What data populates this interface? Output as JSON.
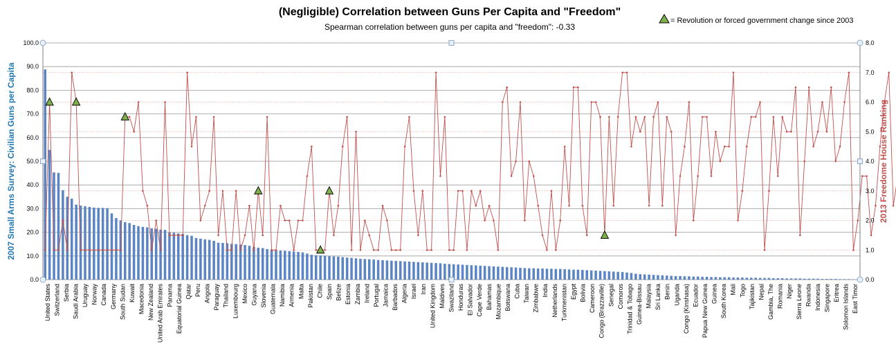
{
  "chart_data": {
    "type": "bar+line",
    "title": "(Negligible) Correlation between Guns Per Capita and \"Freedom\"",
    "subtitle": "Spearman correlation between guns per capita and \"freedom\":  -0.33",
    "ylabel_left": "2007 Small Arms Survey: Civilian Guns per Capita",
    "ylabel_right": "2013 Freedome House Ranking",
    "legend_text": "= Revolution or forced government change since 2003",
    "legend_placement": "top-right",
    "ylim_left": [
      0,
      100
    ],
    "ylim_right": [
      0,
      8
    ],
    "yticks_left": [
      "0.0",
      "10.0",
      "20.0",
      "30.0",
      "40.0",
      "50.0",
      "60.0",
      "70.0",
      "80.0",
      "90.0",
      "100.0"
    ],
    "yticks_right": [
      "0.0",
      "1.0",
      "2.0",
      "3.0",
      "4.0",
      "5.0",
      "6.0",
      "7.0",
      "8.0"
    ],
    "grid": true,
    "colors": {
      "bars": "#5b84c4",
      "line": "#c0504d",
      "marker_fill": "#7fb24a",
      "left_axis_label": "#1f77b4",
      "right_axis_label": "#c0504d"
    },
    "x_tick_labels": [
      "United States",
      "Switzerland",
      "Serbia",
      "Saudi Arabia",
      "Uruguay",
      "Norway",
      "Canada",
      "Germany",
      "South Sudan",
      "Kuwait",
      "Macedonia",
      "New Zealand",
      "United Arab Emirates",
      "Panama",
      "Equatorial Guinea",
      "Qatar",
      "Peru",
      "Angola",
      "Paraguay",
      "Thailand",
      "Luxembourg",
      "Mexico",
      "Guyana",
      "Slovenia",
      "Guatemala",
      "Namibia",
      "Armenia",
      "Malta",
      "Pakistan",
      "Chile",
      "Spain",
      "Belize",
      "Estonia",
      "Zambia",
      "Ireland",
      "Portugal",
      "Jamaica",
      "Barbados",
      "Algeria",
      "Israel",
      "Iran",
      "United Kingdom",
      "Maldives",
      "Swaziland",
      "Honduras",
      "El Salvador",
      "Cape Verde",
      "Bahamas",
      "Mozambique",
      "Botswana",
      "Cuba",
      "Taiwan",
      "Zimbabwe",
      "India",
      "Netherlands",
      "Turkmenistan",
      "Egypt",
      "Bolivia",
      "Cameroon",
      "Congo (Brazzaville)",
      "Senegal",
      "Comoros",
      "Trinidad & Tobago",
      "Guinea-Bissau",
      "Malaysia",
      "Sri Lanka",
      "Benin",
      "Uganda",
      "Congo (Kinshasa)",
      "Ecuador",
      "Papua New Guinea",
      "Guinea",
      "South Korea",
      "Mali",
      "Togo",
      "Tajikistan",
      "Nepal",
      "Gambia, The",
      "Romania",
      "Niger",
      "Sierra Leone",
      "Rwanda",
      "Indonesia",
      "Singapore",
      "Eritrea",
      "Solomon Islands",
      "East Timor"
    ],
    "guns_per_capita": [
      88.8,
      54.8,
      45.3,
      45.1,
      37.8,
      35.0,
      34.2,
      31.7,
      31.3,
      31.0,
      30.7,
      30.4,
      30.3,
      30.3,
      30.2,
      28.0,
      26.0,
      25.0,
      24.3,
      23.9,
      23.1,
      22.6,
      22.3,
      22.1,
      21.7,
      21.5,
      21.1,
      21.0,
      19.9,
      19.8,
      19.5,
      19.3,
      18.8,
      18.5,
      17.6,
      17.3,
      17.0,
      16.8,
      16.4,
      15.6,
      15.5,
      15.4,
      15.1,
      15.0,
      14.8,
      14.6,
      14.3,
      13.8,
      13.5,
      13.3,
      12.9,
      12.6,
      12.4,
      12.3,
      12.2,
      12.0,
      11.9,
      11.7,
      11.5,
      11.0,
      10.5,
      10.3,
      10.2,
      10.1,
      9.9,
      9.8,
      9.7,
      9.5,
      9.3,
      9.2,
      9.0,
      8.8,
      8.7,
      8.6,
      8.5,
      8.3,
      8.2,
      8.1,
      8.0,
      7.9,
      7.8,
      7.7,
      7.6,
      7.5,
      7.4,
      7.3,
      7.2,
      7.1,
      7.0,
      6.9,
      6.7,
      6.6,
      6.5,
      6.4,
      6.3,
      6.2,
      6.1,
      6.0,
      5.9,
      5.8,
      5.7,
      5.6,
      5.5,
      5.4,
      5.3,
      5.2,
      5.1,
      5.0,
      4.9,
      4.8,
      4.8,
      4.7,
      4.7,
      4.6,
      4.6,
      4.5,
      4.5,
      4.4,
      4.3,
      4.2,
      4.2,
      4.1,
      4.0,
      3.9,
      3.8,
      3.7,
      3.6,
      3.5,
      3.4,
      3.3,
      3.2,
      3.0,
      2.8,
      2.5,
      2.3,
      2.2,
      2.1,
      2.0,
      1.9,
      1.8,
      1.7,
      1.6,
      1.5,
      1.5,
      1.4,
      1.4,
      1.3,
      1.3,
      1.2,
      1.2,
      1.1,
      1.1,
      1.0,
      1.0,
      1.0,
      0.9,
      0.9,
      0.9,
      0.8,
      0.8,
      0.8,
      0.7,
      0.7,
      0.7,
      0.6,
      0.6,
      0.6,
      0.5,
      0.5,
      0.5,
      0.5,
      0.4,
      0.4,
      0.4,
      0.4,
      0.3,
      0.3,
      0.3,
      0.3,
      0.2,
      0.2,
      0.2,
      0.1,
      0.1
    ],
    "freedom_ranking": [
      1.0,
      6.0,
      1.0,
      1.0,
      2.0,
      1.0,
      7.0,
      6.0,
      1.0,
      1.0,
      1.0,
      1.0,
      1.0,
      1.0,
      1.0,
      1.0,
      1.0,
      1.0,
      5.5,
      5.5,
      5.0,
      6.0,
      3.0,
      2.5,
      1.0,
      2.0,
      1.0,
      6.0,
      1.5,
      1.5,
      1.5,
      1.5,
      7.0,
      4.5,
      5.5,
      2.0,
      2.5,
      3.0,
      5.5,
      1.5,
      3.0,
      1.0,
      1.0,
      3.0,
      1.0,
      1.5,
      2.5,
      1.0,
      3.0,
      1.5,
      5.5,
      1.0,
      1.0,
      2.5,
      2.0,
      2.0,
      1.0,
      2.0,
      2.0,
      3.5,
      4.5,
      1.0,
      1.0,
      1.0,
      3.0,
      1.5,
      2.5,
      4.5,
      5.5,
      1.0,
      5.0,
      1.0,
      2.0,
      1.5,
      1.0,
      1.0,
      2.5,
      2.0,
      1.0,
      1.0,
      1.0,
      4.5,
      5.5,
      3.0,
      1.5,
      3.0,
      1.0,
      1.0,
      7.0,
      3.5,
      5.5,
      1.0,
      1.0,
      3.0,
      3.0,
      1.0,
      3.0,
      2.5,
      3.0,
      2.0,
      2.5,
      2.0,
      1.0,
      6.0,
      6.5,
      3.5,
      4.0,
      6.0,
      2.0,
      4.0,
      3.5,
      2.5,
      1.5,
      1.0,
      3.0,
      1.0,
      2.0,
      4.5,
      2.5,
      6.5,
      6.5,
      2.5,
      1.5,
      6.0,
      6.0,
      5.5,
      1.5,
      5.5,
      2.5,
      5.5,
      7.0,
      7.0,
      4.5,
      5.5,
      5.0,
      5.5,
      2.5,
      5.5,
      6.0,
      2.5,
      5.5,
      5.0,
      1.5,
      3.5,
      4.5,
      6.0,
      2.0,
      3.5,
      5.5,
      5.5,
      3.5,
      5.0,
      4.0,
      4.5,
      4.5,
      7.0,
      2.0,
      3.0,
      4.5,
      5.5,
      5.5,
      6.0,
      1.0,
      3.0,
      5.5,
      3.5,
      5.5,
      5.0,
      5.0,
      6.5,
      1.5,
      4.0,
      6.5,
      4.5,
      5.0,
      6.0,
      5.0,
      6.5,
      4.0,
      4.5,
      6.0,
      7.0,
      1.0,
      2.0,
      3.5,
      3.5,
      1.5,
      2.5,
      4.5,
      6.0,
      7.0,
      2.5,
      3.5,
      4.0,
      5.0,
      7.0,
      1.5,
      3.5,
      6.0,
      3.5,
      3.5
    ],
    "revolution_flags": [
      0,
      1,
      0,
      0,
      0,
      0,
      0,
      1,
      0,
      0,
      0,
      0,
      0,
      0,
      0,
      0,
      0,
      0,
      1,
      0,
      0,
      0,
      0,
      0,
      0,
      0,
      0,
      0,
      0,
      0,
      0,
      0,
      0,
      0,
      0,
      0,
      0,
      0,
      0,
      0,
      0,
      0,
      0,
      0,
      0,
      0,
      0,
      0,
      1,
      0,
      0,
      0,
      0,
      0,
      0,
      0,
      0,
      0,
      0,
      0,
      0,
      0,
      1,
      0,
      1,
      0,
      0,
      0,
      0,
      0,
      0,
      0,
      0,
      0,
      0,
      0,
      0,
      0,
      0,
      0,
      0,
      0,
      0,
      0,
      0,
      0,
      0,
      0,
      0,
      0,
      0,
      0,
      0,
      0,
      0,
      0,
      0,
      0,
      0,
      0,
      0,
      0,
      0,
      0,
      0,
      0,
      0,
      0,
      0,
      0,
      0,
      0,
      0,
      0,
      0,
      0,
      0,
      0,
      0,
      0,
      0,
      0,
      0,
      0,
      0,
      0,
      1,
      0,
      0,
      0,
      0,
      0,
      0,
      0,
      0,
      0,
      0,
      0,
      0,
      0,
      0,
      0,
      0,
      0,
      0,
      0,
      0,
      0,
      0,
      0,
      0,
      0,
      0,
      0,
      0,
      0,
      0,
      0,
      0,
      0,
      0,
      0,
      0,
      0,
      0,
      0,
      0,
      0,
      0,
      0,
      0,
      0,
      0,
      0,
      0,
      0,
      0,
      0,
      0,
      0,
      0,
      0,
      0,
      0,
      0,
      0,
      0,
      0,
      0,
      0,
      0,
      0,
      0,
      0,
      0,
      0,
      0,
      0,
      0,
      0,
      0,
      0
    ]
  }
}
